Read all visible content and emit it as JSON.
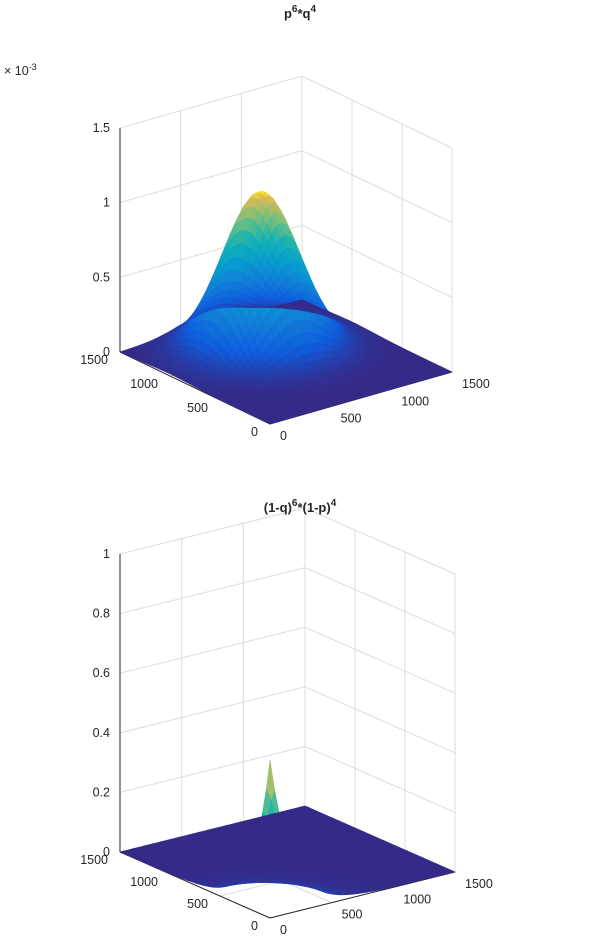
{
  "chart_data": [
    {
      "type": "surface",
      "title_base1": "p",
      "title_sup1": "6",
      "title_mid": "*q",
      "title_sup2": "4",
      "title_end": "",
      "z_exponent_label": "× 10",
      "z_exponent_power": "-3",
      "xlim": [
        0,
        1500
      ],
      "ylim": [
        0,
        1500
      ],
      "zlim": [
        0,
        1.5
      ],
      "z_scale": 0.001,
      "x_ticks": [
        "0",
        "500",
        "1000",
        "1500"
      ],
      "y_ticks": [
        "0",
        "500",
        "1000",
        "1500"
      ],
      "z_ticks": [
        "0",
        "0.5",
        "1",
        "1.5"
      ],
      "grid": true,
      "colormap": "parula",
      "peak": {
        "x": 750,
        "y": 1000,
        "z": 1.06
      }
    },
    {
      "type": "surface",
      "title_base1": "(1-q)",
      "title_sup1": "6",
      "title_mid": "*(1-p)",
      "title_sup2": "4",
      "title_end": "",
      "z_exponent_label": "",
      "z_exponent_power": "",
      "xlim": [
        0,
        1500
      ],
      "ylim": [
        0,
        1500
      ],
      "zlim": [
        0,
        1
      ],
      "z_scale": 1,
      "x_ticks": [
        "0",
        "500",
        "1000",
        "1500"
      ],
      "y_ticks": [
        "0",
        "500",
        "1000",
        "1500"
      ],
      "z_ticks": [
        "0",
        "0.2",
        "0.4",
        "0.6",
        "0.8",
        "1"
      ],
      "grid": true,
      "colormap": "parula",
      "peak": {
        "x": 0,
        "y": 0,
        "z": 0.53
      }
    }
  ]
}
